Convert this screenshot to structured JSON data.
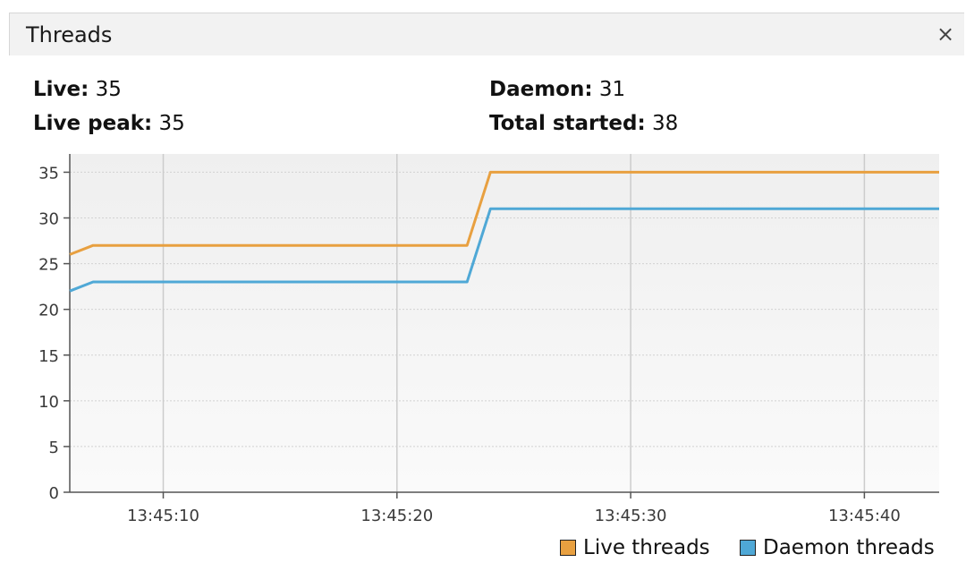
{
  "window": {
    "tab_title": "Threads",
    "close_label": "×"
  },
  "stats": {
    "live_label": "Live:",
    "live_value": "35",
    "live_peak_label": "Live peak:",
    "live_peak_value": "35",
    "daemon_label": "Daemon:",
    "daemon_value": "31",
    "total_started_label": "Total started:",
    "total_started_value": "38"
  },
  "chart_data": {
    "type": "line",
    "title": "",
    "xlabel": "",
    "ylabel": "",
    "ylim": [
      0,
      37
    ],
    "yticks": [
      0,
      5,
      10,
      15,
      20,
      25,
      30,
      35
    ],
    "xlim_seconds": [
      6.0,
      43.2
    ],
    "xticks": [
      {
        "t": 10,
        "label": "13:45:10"
      },
      {
        "t": 20,
        "label": "13:45:20"
      },
      {
        "t": 30,
        "label": "13:45:30"
      },
      {
        "t": 40,
        "label": "13:45:40"
      }
    ],
    "grid": true,
    "legend_position": "bottom-right",
    "series": [
      {
        "name": "Live threads",
        "color": "#e8a040",
        "points": [
          [
            6.0,
            26
          ],
          [
            7.0,
            27
          ],
          [
            23.0,
            27
          ],
          [
            24.0,
            35
          ],
          [
            43.2,
            35
          ]
        ]
      },
      {
        "name": "Daemon threads",
        "color": "#4fa8d6",
        "points": [
          [
            6.0,
            22
          ],
          [
            7.0,
            23
          ],
          [
            23.0,
            23
          ],
          [
            24.0,
            31
          ],
          [
            43.2,
            31
          ]
        ]
      }
    ]
  }
}
